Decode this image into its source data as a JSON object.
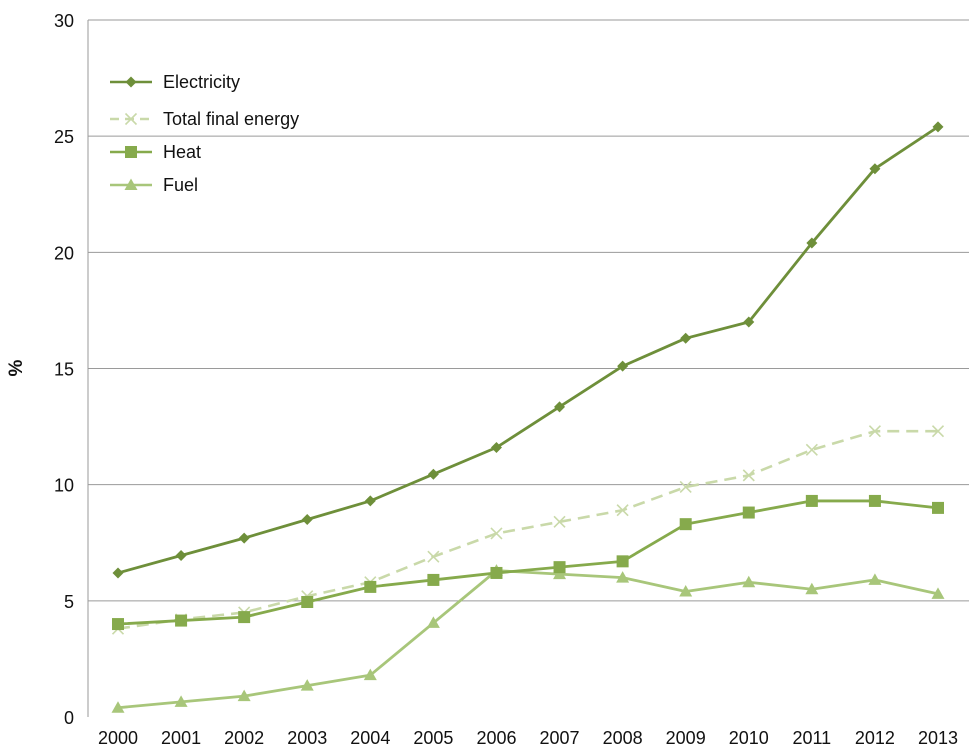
{
  "chart_data": {
    "type": "line",
    "title": "",
    "xlabel": "",
    "ylabel": "%",
    "ylim": [
      0,
      30
    ],
    "yticks": [
      0,
      5,
      10,
      15,
      20,
      25,
      30
    ],
    "grid": true,
    "legend_position": "top-left",
    "x": [
      "2000",
      "2001",
      "2002",
      "2003",
      "2004",
      "2005",
      "2006",
      "2007",
      "2008",
      "2009",
      "2010",
      "2011",
      "2012",
      "2013"
    ],
    "series": [
      {
        "name": "Electricity",
        "color": "#6e8f3a",
        "marker": "diamond",
        "dashed": false,
        "values": [
          6.2,
          6.95,
          7.7,
          8.5,
          9.3,
          10.45,
          11.6,
          13.35,
          15.1,
          16.3,
          17.0,
          20.4,
          23.6,
          25.4
        ]
      },
      {
        "name": "Total final energy",
        "color": "#c9d9a9",
        "marker": "x",
        "dashed": true,
        "values": [
          3.8,
          4.2,
          4.5,
          5.2,
          5.8,
          6.9,
          7.9,
          8.4,
          8.9,
          9.9,
          10.4,
          11.5,
          12.3,
          12.3
        ]
      },
      {
        "name": "Heat",
        "color": "#86aa4c",
        "marker": "square",
        "dashed": false,
        "values": [
          4.0,
          4.15,
          4.3,
          4.95,
          5.6,
          5.9,
          6.2,
          6.45,
          6.7,
          8.3,
          8.8,
          9.3,
          9.3,
          9.0
        ]
      },
      {
        "name": "Fuel",
        "color": "#a8c67a",
        "marker": "triangle",
        "dashed": false,
        "values": [
          0.4,
          0.65,
          0.9,
          1.35,
          1.8,
          4.05,
          6.3,
          6.15,
          6.0,
          5.4,
          5.8,
          5.5,
          5.9,
          5.3
        ]
      }
    ]
  }
}
